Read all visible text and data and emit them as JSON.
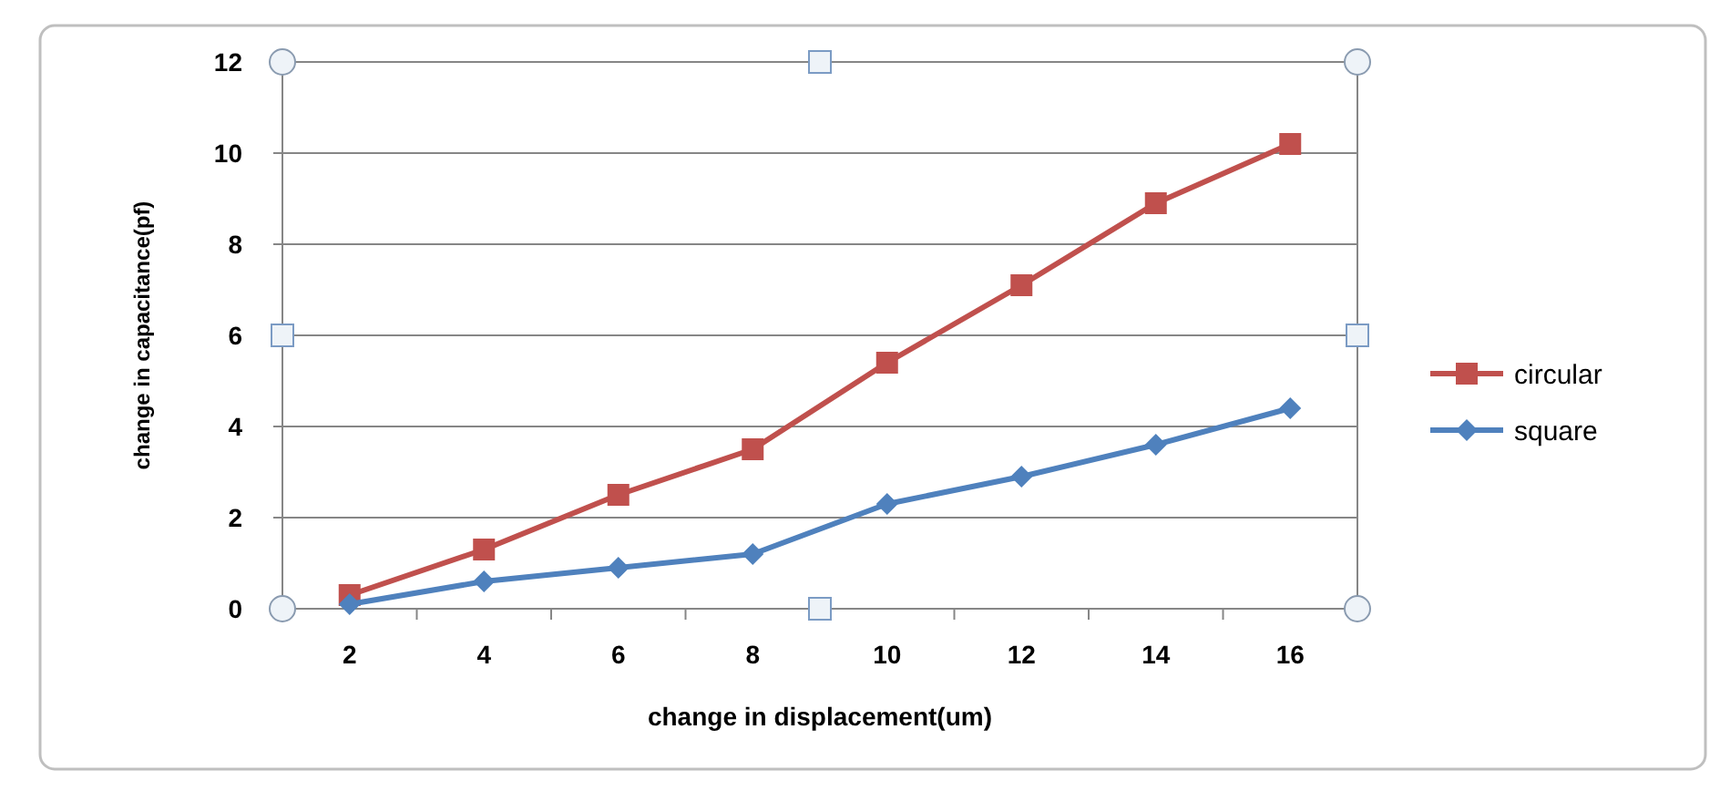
{
  "chart_data": {
    "type": "line",
    "xlabel": "change  in displacement(um)",
    "ylabel": "change in capacitance(pf)",
    "categories": [
      "2",
      "4",
      "6",
      "8",
      "10",
      "12",
      "14",
      "16"
    ],
    "series": [
      {
        "name": "circular",
        "color": "#c0504d",
        "marker": "square",
        "values": [
          0.3,
          1.3,
          2.5,
          3.5,
          5.4,
          7.1,
          8.9,
          10.2
        ]
      },
      {
        "name": "square",
        "color": "#4f81bd",
        "marker": "diamond",
        "values": [
          0.1,
          0.6,
          0.9,
          1.2,
          2.3,
          2.9,
          3.6,
          4.4
        ]
      }
    ],
    "ylim": [
      0,
      12
    ],
    "yticks": [
      0,
      2,
      4,
      6,
      8,
      10,
      12
    ],
    "grid": "y",
    "legend": "right"
  }
}
